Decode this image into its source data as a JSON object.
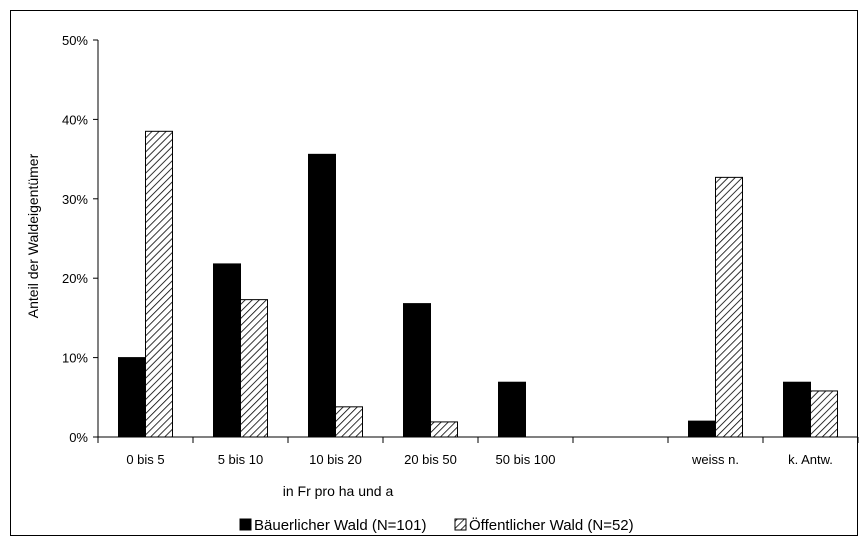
{
  "chart_data": {
    "type": "bar",
    "title": "",
    "xlabel": "in Fr pro ha und a",
    "ylabel": "Anteil der Waldeigentümer",
    "categories": [
      "0 bis 5",
      "5 bis 10",
      "10 bis 20",
      "20 bis 50",
      "50 bis 100",
      "",
      "weiss n.",
      "k. Antw."
    ],
    "series": [
      {
        "name": "Bäuerlicher Wald (N=101)",
        "values": [
          10,
          21.8,
          35.6,
          16.8,
          6.9,
          null,
          2.0,
          6.9
        ],
        "color": "#000000",
        "pattern": "solid"
      },
      {
        "name": "Öffentlicher Wald (N=52)",
        "values": [
          38.5,
          17.3,
          3.8,
          1.9,
          null,
          null,
          32.7,
          5.8
        ],
        "color": "#ffffff",
        "pattern": "diagonal-hatch"
      }
    ],
    "ylim": [
      0,
      50
    ],
    "yticks": [
      0,
      10,
      20,
      30,
      40,
      50
    ],
    "ytick_labels": [
      "0%",
      "10%",
      "20%",
      "30%",
      "40%",
      "50%"
    ],
    "grid": false,
    "legend_position": "bottom"
  }
}
